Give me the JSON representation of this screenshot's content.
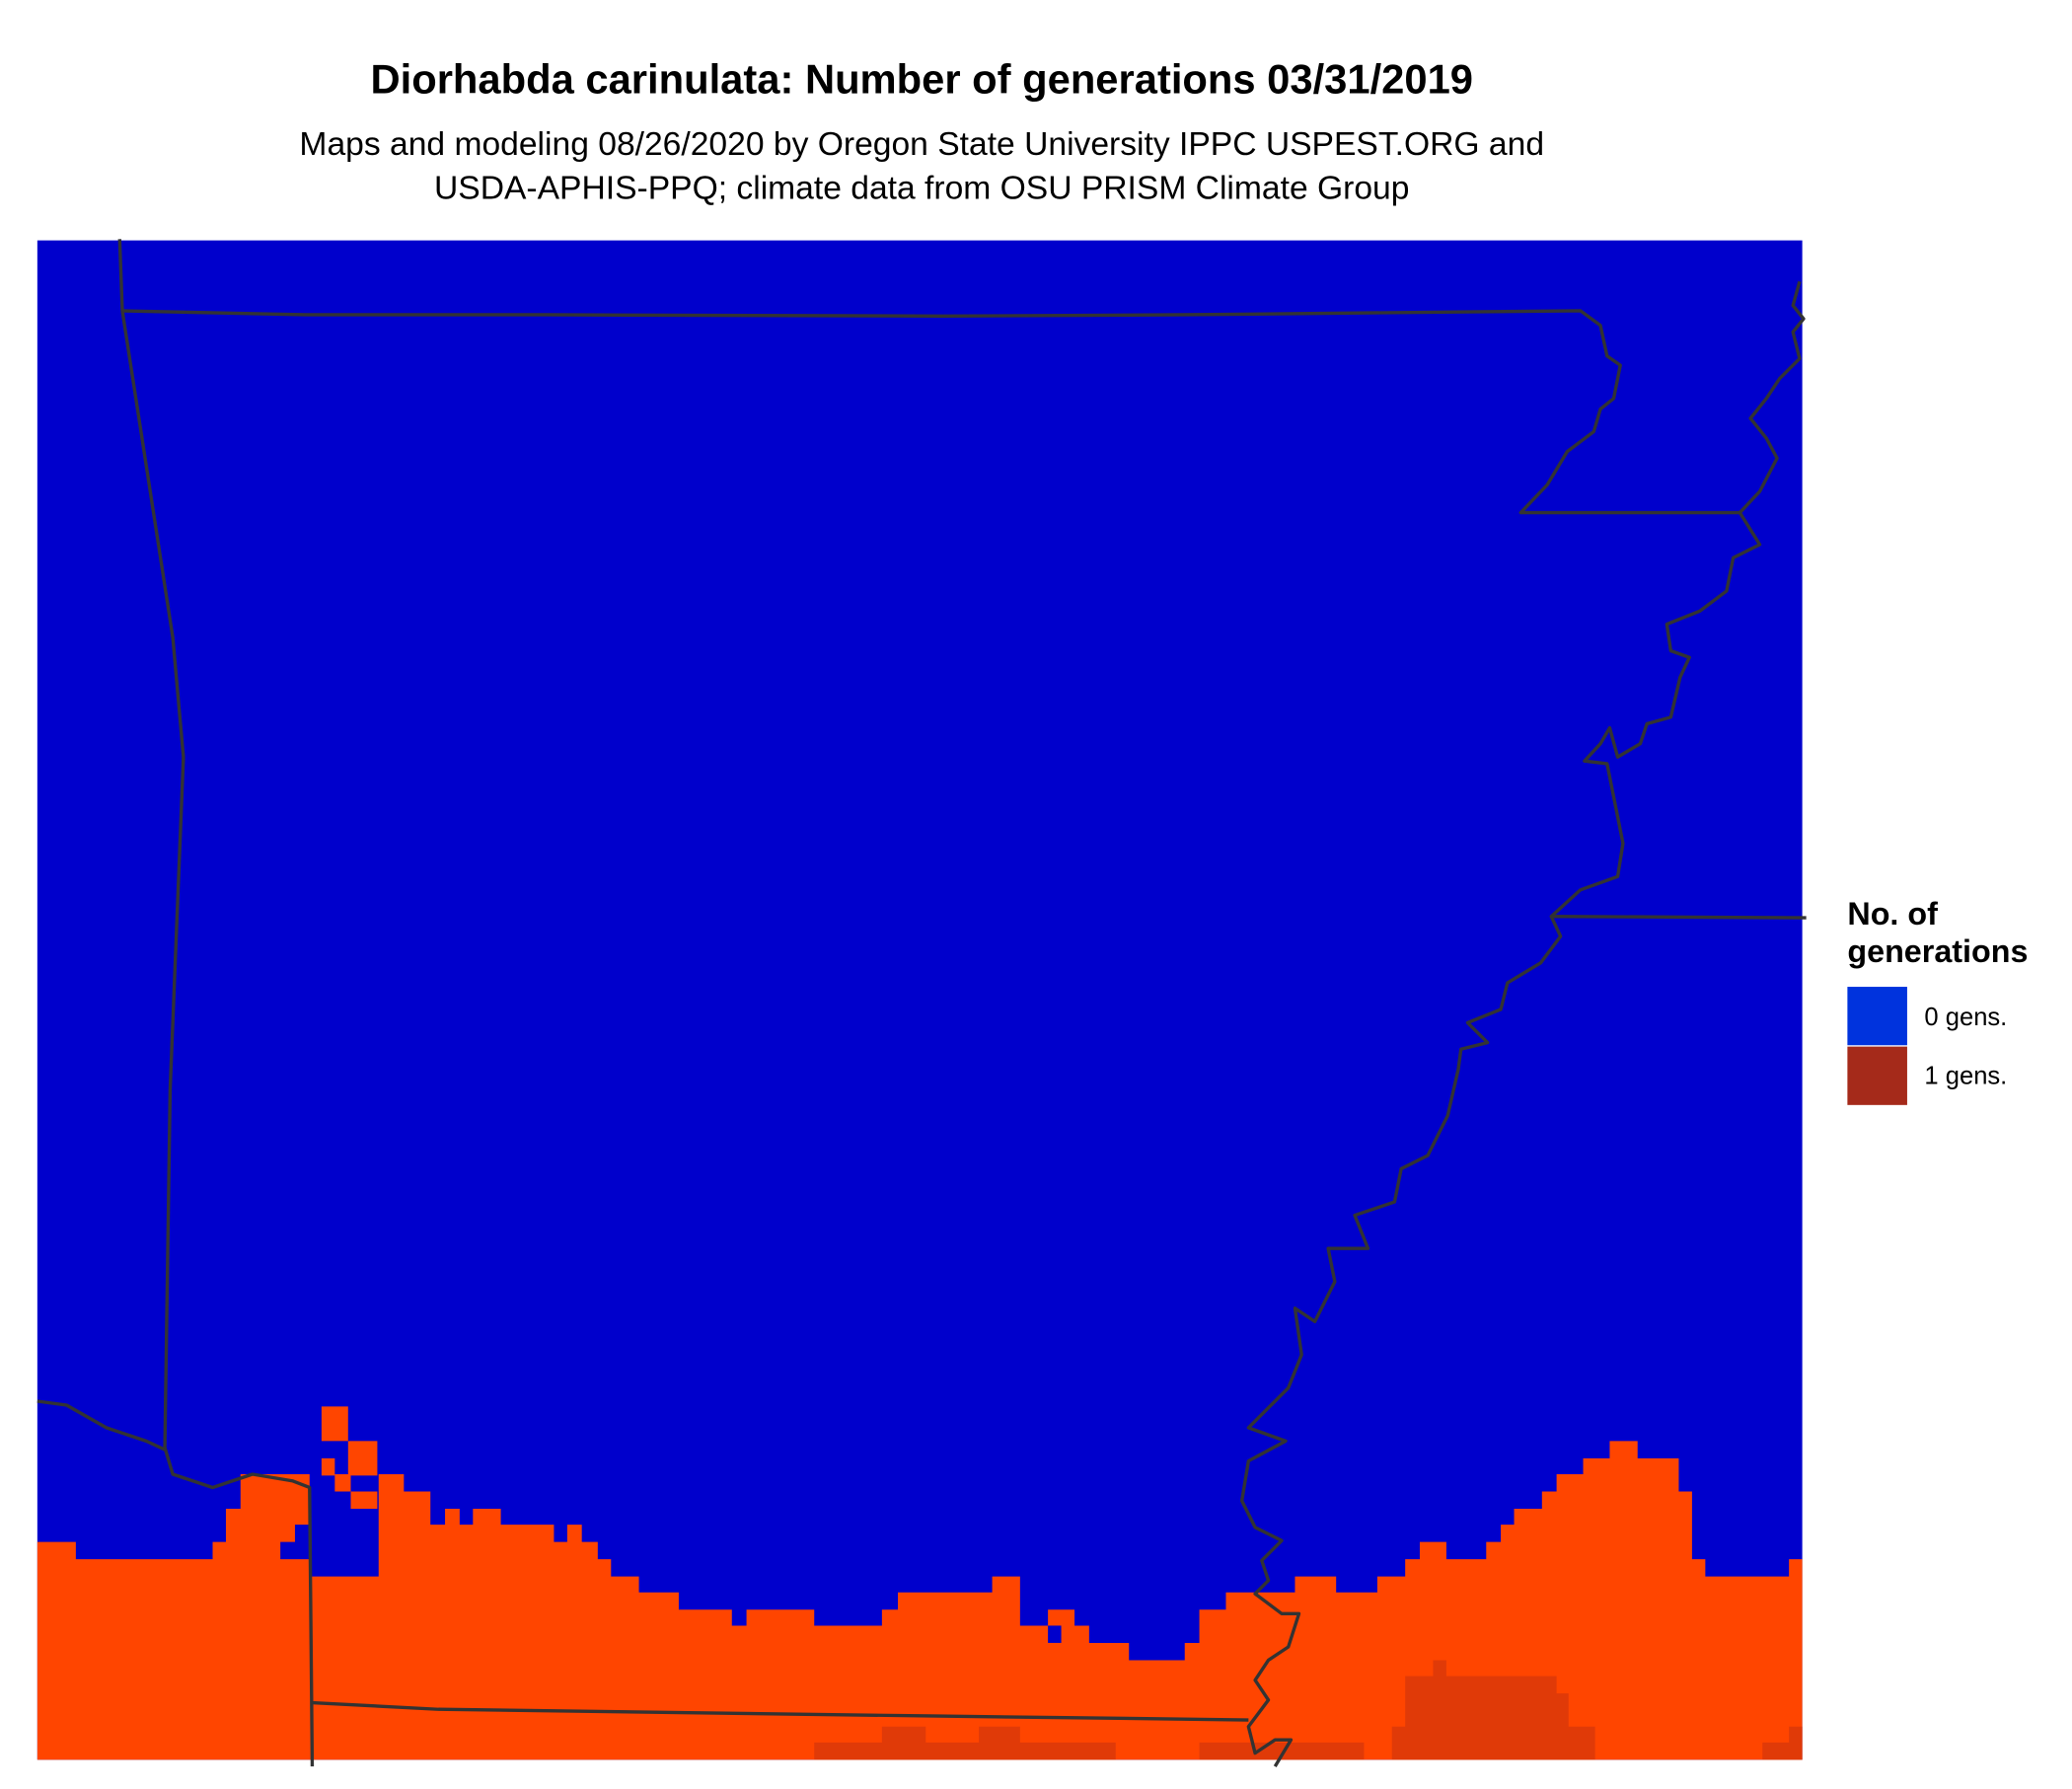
{
  "title": "Diorhabda carinulata: Number of generations 03/31/2019",
  "subtitle": [
    "Maps and modeling 08/26/2020 by Oregon State University IPPC USPEST.ORG and",
    "USDA-APHIS-PPQ; climate data from OSU PRISM Climate Group"
  ],
  "legend": {
    "title": [
      "No. of",
      "generations"
    ],
    "items": [
      {
        "label": "0 gens.",
        "color": "#0033dd"
      },
      {
        "label": "1 gens.",
        "color": "#a52a1a"
      }
    ]
  }
}
